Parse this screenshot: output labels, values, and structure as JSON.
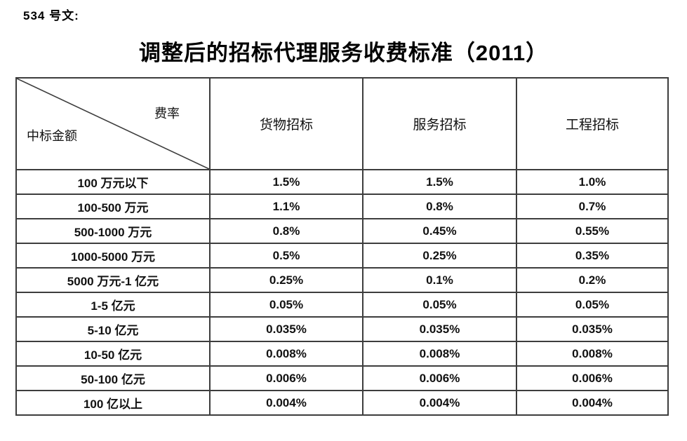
{
  "page": {
    "doc_label": "534 号文:",
    "title": "调整后的招标代理服务收费标准（2011）"
  },
  "table": {
    "corner": {
      "top_right": "费率",
      "bottom_left": "中标金额"
    },
    "columns": [
      "货物招标",
      "服务招标",
      "工程招标"
    ],
    "rows": [
      {
        "amount": "100 万元以下",
        "goods": "1.5%",
        "service": "1.5%",
        "engineering": "1.0%"
      },
      {
        "amount": "100-500 万元",
        "goods": "1.1%",
        "service": "0.8%",
        "engineering": "0.7%"
      },
      {
        "amount": "500-1000 万元",
        "goods": "0.8%",
        "service": "0.45%",
        "engineering": "0.55%"
      },
      {
        "amount": "1000-5000 万元",
        "goods": "0.5%",
        "service": "0.25%",
        "engineering": "0.35%"
      },
      {
        "amount": "5000 万元-1 亿元",
        "goods": "0.25%",
        "service": "0.1%",
        "engineering": "0.2%"
      },
      {
        "amount": "1-5 亿元",
        "goods": "0.05%",
        "service": "0.05%",
        "engineering": "0.05%"
      },
      {
        "amount": "5-10 亿元",
        "goods": "0.035%",
        "service": "0.035%",
        "engineering": "0.035%"
      },
      {
        "amount": "10-50 亿元",
        "goods": "0.008%",
        "service": "0.008%",
        "engineering": "0.008%"
      },
      {
        "amount": "50-100 亿元",
        "goods": "0.006%",
        "service": "0.006%",
        "engineering": "0.006%"
      },
      {
        "amount": "100 亿以上",
        "goods": "0.004%",
        "service": "0.004%",
        "engineering": "0.004%"
      }
    ]
  },
  "colors": {
    "text": "#111111",
    "border": "#3d3d3d",
    "background": "#ffffff"
  }
}
